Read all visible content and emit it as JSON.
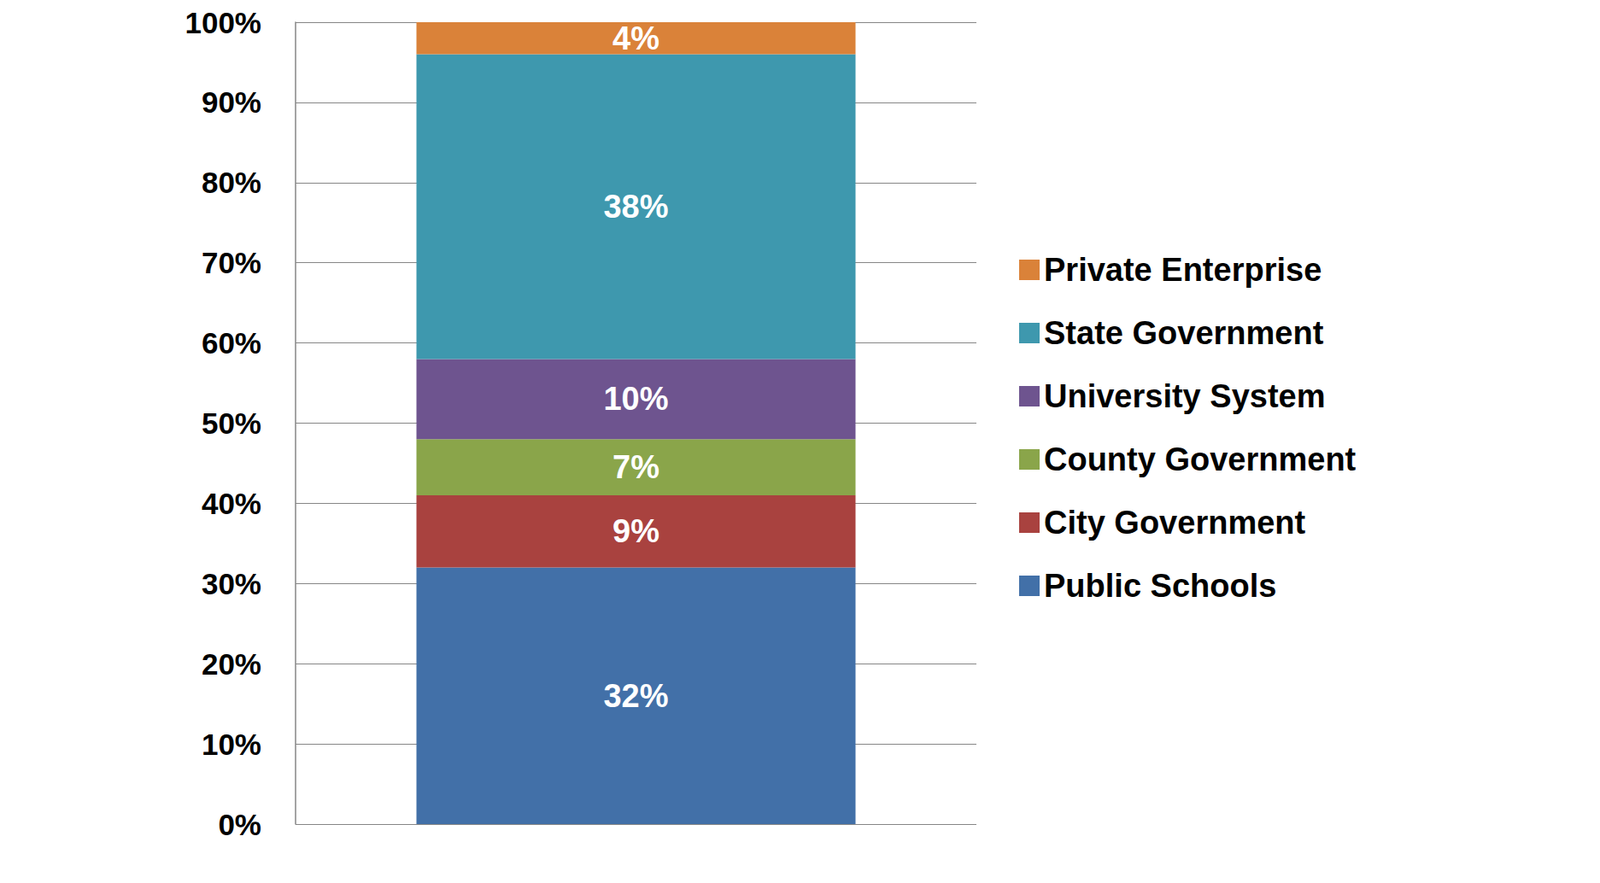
{
  "chart_data": {
    "type": "bar",
    "stacked": true,
    "data_labels": true,
    "grid": true,
    "legend": "right",
    "tick_labels": "y",
    "categories": [
      null
    ],
    "ylim": [
      0,
      100
    ],
    "yticks": [
      {
        "value": 0,
        "label": "0%"
      },
      {
        "value": 10,
        "label": "10%"
      },
      {
        "value": 20,
        "label": "20%"
      },
      {
        "value": 30,
        "label": "30%"
      },
      {
        "value": 40,
        "label": "40%"
      },
      {
        "value": 50,
        "label": "50%"
      },
      {
        "value": 60,
        "label": "60%"
      },
      {
        "value": 70,
        "label": "70%"
      },
      {
        "value": 80,
        "label": "80%"
      },
      {
        "value": 90,
        "label": "90%"
      },
      {
        "value": 100,
        "label": "100%"
      }
    ],
    "series": [
      {
        "name": "Public Schools",
        "color": "#4270a8",
        "values": [
          32
        ],
        "value_labels": [
          "32%"
        ]
      },
      {
        "name": "City Government",
        "color": "#a9423f",
        "values": [
          9
        ],
        "value_labels": [
          "9%"
        ]
      },
      {
        "name": "County Government",
        "color": "#8aa54a",
        "values": [
          7
        ],
        "value_labels": [
          "7%"
        ]
      },
      {
        "name": "University System",
        "color": "#6e548f",
        "values": [
          10
        ],
        "value_labels": [
          "10%"
        ]
      },
      {
        "name": "State Government",
        "color": "#3e98ae",
        "values": [
          38
        ],
        "value_labels": [
          "38%"
        ]
      },
      {
        "name": "Private Enterprise",
        "color": "#da8239",
        "values": [
          4
        ],
        "value_labels": [
          "4%"
        ]
      }
    ]
  }
}
